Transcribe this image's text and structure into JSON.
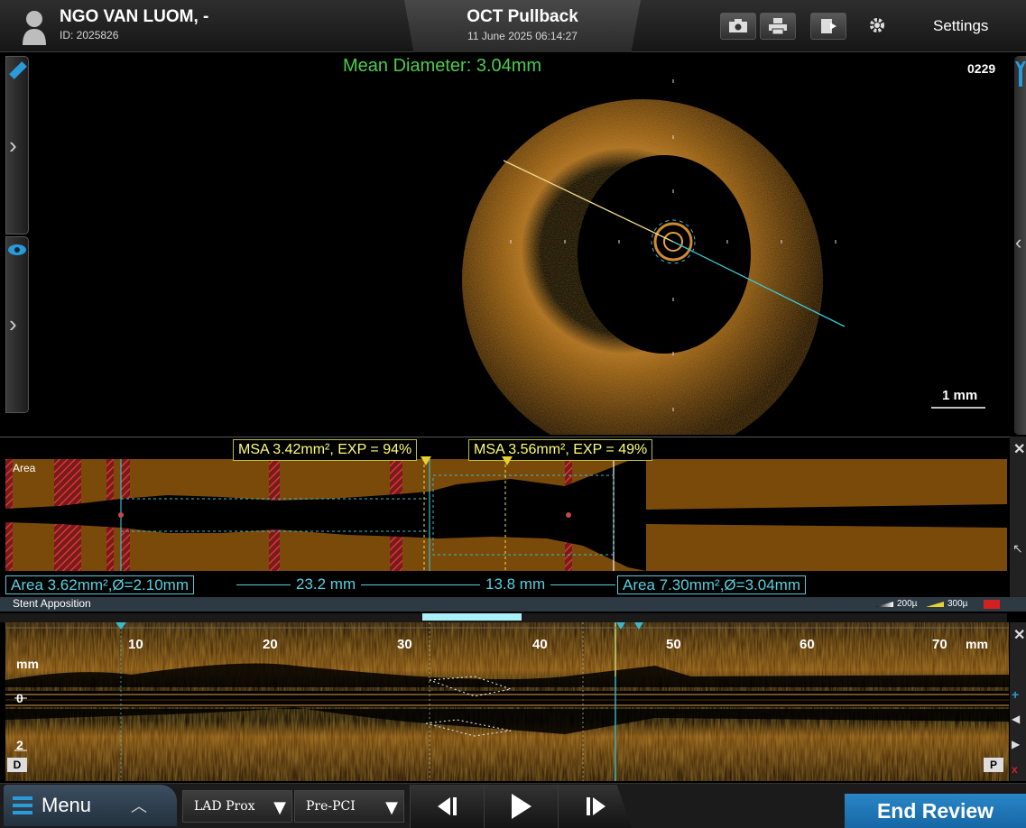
{
  "patient": {
    "name": "NGO VAN LUOM, -",
    "id": "ID: 2025826"
  },
  "header": {
    "title": "OCT Pullback",
    "date": "11 June 2025 06:14:27",
    "settings_label": "Settings"
  },
  "oct": {
    "mean_diameter": "Mean Diameter:  3.04mm",
    "frame": "0229",
    "scale": "1 mm"
  },
  "area_profile": {
    "label": "Area",
    "msa_left": "MSA 3.42mm², EXP = 94%",
    "msa_right": "MSA 3.56mm², EXP = 49%",
    "ref_left": "Area 3.62mm²,Ø=2.10mm",
    "length_1": "23.2 mm",
    "length_2": "13.8 mm",
    "ref_right": "Area 7.30mm²,Ø=3.04mm"
  },
  "stent_apposition": {
    "label": "Stent Apposition",
    "legend_200": "200µ",
    "legend_300": "300µ"
  },
  "lmode": {
    "ticks": [
      "10",
      "20",
      "30",
      "40",
      "50",
      "60",
      "70"
    ],
    "unit_top": "mm",
    "unit_side": "mm",
    "y_zero": "0",
    "y_two": "2",
    "distal": "D",
    "proximal": "P"
  },
  "footer": {
    "menu": "Menu",
    "vessel": "LAD Prox",
    "phase": "Pre-PCI",
    "end_review": "End Review"
  },
  "colors": {
    "accent": "#2a86c6",
    "measure_yellow": "#ffff70",
    "measure_cyan": "#57d0e0",
    "diameter_green": "#4ccd4c",
    "tissue": "#7a4a0a"
  },
  "icons": [
    "person-icon",
    "camera-icon",
    "print-icon",
    "export-icon",
    "gear-icon",
    "ruler-icon",
    "eye-icon",
    "chevron-right-icon",
    "chevron-left-icon",
    "wrench-icon",
    "close-icon",
    "list-icon",
    "chevron-up-icon",
    "triangle-down-icon",
    "step-back-icon",
    "play-icon",
    "step-forward-icon"
  ]
}
